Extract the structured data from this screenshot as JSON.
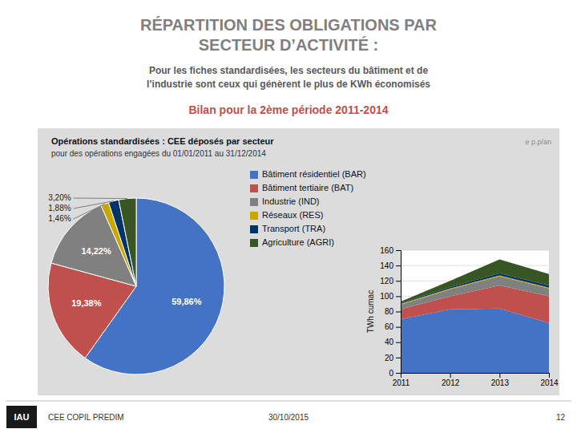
{
  "title": [
    "RÉPARTITION DES OBLIGATIONS PAR",
    "SECTEUR D’ACTIVITÉ :"
  ],
  "subtitle": [
    "Pour les fiches standardisées, les secteurs du bâtiment et de",
    "l’industrie sont ceux qui génèrent le plus de KWh économisés"
  ],
  "annotations": [
    "Bilan pour la 2ème période 2011-2014",
    "e p.p/an",
    "IAU",
    "CEE COPIL PREDIM",
    "30/10/2015",
    "12"
  ],
  "chart_data": [
    {
      "type": "pie",
      "title": "Opérations standardisées : CEE déposés par secteur",
      "subtitle": "pour des opérations engagées du 01/01/2011 au 31/12/2014",
      "categories": [
        "Bâtiment résidentiel (BAR)",
        "Bâtiment tertiaire (BAT)",
        "Industrie (IND)",
        "Réseaux (RES)",
        "Transport (TRA)",
        "Agriculture (AGRI)"
      ],
      "values": [
        59.86,
        19.38,
        14.22,
        1.46,
        1.88,
        3.2
      ],
      "value_labels": [
        "59,86%",
        "19,38%",
        "14,22%",
        "1,46%",
        "1,88%",
        "3,20%"
      ],
      "colors": [
        "#4472C4",
        "#C0504D",
        "#808080",
        "#C8A800",
        "#003366",
        "#375623"
      ],
      "data_labels": true,
      "legend": "right"
    },
    {
      "type": "area",
      "stacked": true,
      "x": [
        2011,
        2012,
        2013,
        2014
      ],
      "xlim": [
        2011,
        2014
      ],
      "xticks": [
        2011,
        2012,
        2013,
        2014
      ],
      "ylim": [
        0,
        160
      ],
      "yticks": [
        0,
        20,
        40,
        60,
        80,
        100,
        120,
        140,
        160
      ],
      "ylabel": "TWh cumac",
      "grid": true,
      "series": [
        {
          "color": "#4472C4",
          "values": [
            70,
            83,
            84,
            65
          ]
        },
        {
          "color": "#C0504D",
          "values": [
            13,
            17,
            30,
            35
          ]
        },
        {
          "color": "#808080",
          "values": [
            6,
            9,
            12,
            10
          ]
        },
        {
          "color": "#C8A800",
          "values": [
            1,
            1,
            1,
            1
          ]
        },
        {
          "color": "#003366",
          "values": [
            1,
            2,
            3,
            3
          ]
        },
        {
          "color": "#375623",
          "values": [
            2,
            8,
            18,
            15
          ]
        }
      ]
    }
  ]
}
